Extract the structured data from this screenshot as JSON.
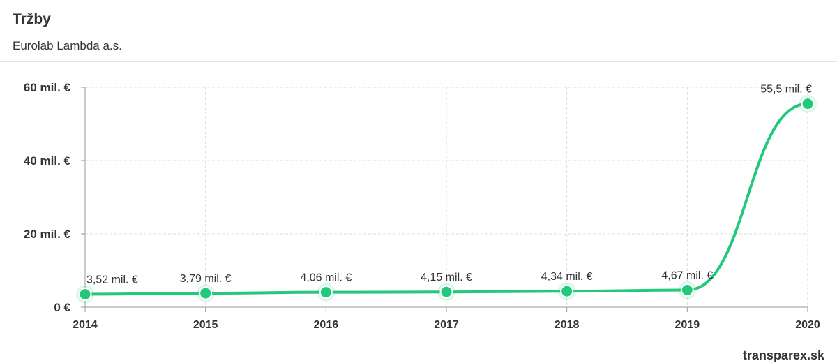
{
  "header": {
    "title": "Tržby",
    "subtitle": "Eurolab Lambda a.s."
  },
  "footer": {
    "source": "transparex.sk"
  },
  "colors": {
    "line": "#22c97a",
    "grid": "#dddddd",
    "axis": "#999999",
    "text": "#333333"
  },
  "chart_data": {
    "type": "line",
    "title": "Tržby",
    "subtitle": "Eurolab Lambda a.s.",
    "x": [
      "2014",
      "2015",
      "2016",
      "2017",
      "2018",
      "2019",
      "2020"
    ],
    "series": [
      {
        "values": [
          3.52,
          3.79,
          4.06,
          4.15,
          4.34,
          4.67,
          55.5
        ],
        "labels": [
          "3,52 mil. €",
          "3,79 mil. €",
          "4,06 mil. €",
          "4,15 mil. €",
          "4,34 mil. €",
          "4,67 mil. €",
          "55,5 mil. €"
        ]
      }
    ],
    "yticks": [
      0,
      20,
      40,
      60
    ],
    "ytick_labels": [
      "0 €",
      "20 mil. €",
      "40 mil. €",
      "60 mil. €"
    ],
    "ylim": [
      0,
      60
    ],
    "grid": true,
    "xlabel": "",
    "ylabel": ""
  }
}
